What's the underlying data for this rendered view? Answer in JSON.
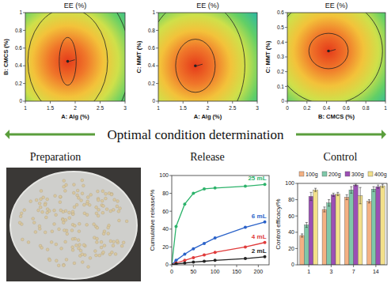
{
  "header": {
    "banner": "Optimal condition determination",
    "sections": [
      "Preparation",
      "Release",
      "Control"
    ]
  },
  "chart_data": [
    {
      "type": "contour",
      "title": "EE (%)",
      "x_label": "A: Alg (%)",
      "y_label": "B: CMCS (%)",
      "xlim": [
        1,
        3
      ],
      "ylim": [
        0,
        1
      ],
      "xticks": [
        1,
        1.5,
        2,
        2.5,
        3
      ],
      "yticks": [
        0,
        0.2,
        0.4,
        0.6,
        0.8,
        1
      ],
      "optimum": [
        1.85,
        0.45
      ],
      "contours": [
        {
          "center": [
            1.85,
            0.45
          ],
          "radius": [
            0.17,
            0.27
          ]
        },
        {
          "center": [
            1.85,
            0.45
          ],
          "radius": [
            0.8,
            0.6
          ]
        },
        {
          "center": [
            1.85,
            0.45
          ],
          "radius": [
            1.25,
            0.9
          ]
        }
      ]
    },
    {
      "type": "contour",
      "title": "EE (%)",
      "x_label": "A: Alg (%)",
      "y_label": "C: MMT (%)",
      "xlim": [
        1,
        3
      ],
      "ylim": [
        0,
        1
      ],
      "xticks": [
        1,
        1.5,
        2,
        2.5,
        3
      ],
      "yticks": [
        0,
        0.2,
        0.4,
        0.6,
        0.8,
        1
      ],
      "optimum": [
        1.75,
        0.4
      ],
      "contours": [
        {
          "center": [
            1.75,
            0.4
          ],
          "radius": [
            0.4,
            0.3
          ]
        },
        {
          "center": [
            1.75,
            0.4
          ],
          "radius": [
            1.0,
            0.75
          ]
        }
      ]
    },
    {
      "type": "contour",
      "title": "EE (%)",
      "x_label": "B: CMCS (%)",
      "y_label": "C: MMT (%)",
      "xlim": [
        0,
        1
      ],
      "ylim": [
        0,
        0.6
      ],
      "xticks": [
        0,
        0.2,
        0.4,
        0.6,
        0.8,
        1
      ],
      "yticks": [
        0,
        0.1,
        0.2,
        0.3,
        0.4,
        0.5,
        0.6
      ],
      "optimum": [
        0.42,
        0.34
      ],
      "contours": [
        {
          "center": [
            0.42,
            0.34
          ],
          "radius": [
            0.2,
            0.12
          ]
        },
        {
          "center": [
            0.42,
            0.34
          ],
          "radius": [
            0.55,
            0.36
          ]
        }
      ]
    },
    {
      "type": "line",
      "y_label": "Cumulative release/%",
      "x": [
        0,
        10,
        30,
        50,
        75,
        100,
        170,
        215
      ],
      "xlim": [
        0,
        225
      ],
      "ylim": [
        0,
        100
      ],
      "xticks": [
        0,
        50,
        100,
        150,
        200
      ],
      "yticks": [
        0,
        20,
        40,
        60,
        80,
        100
      ],
      "series": [
        {
          "name": "25 mL",
          "color": "#2db36b",
          "marker": "circle",
          "values": [
            0,
            43,
            68,
            80,
            85,
            86,
            88,
            90
          ]
        },
        {
          "name": "6 mL",
          "color": "#2a62c9",
          "marker": "circle",
          "values": [
            0,
            5,
            12,
            18,
            24,
            30,
            42,
            48
          ]
        },
        {
          "name": "4 mL",
          "color": "#e03a3a",
          "marker": "circle",
          "values": [
            0,
            2,
            5,
            8,
            11,
            14,
            20,
            25
          ]
        },
        {
          "name": "2 mL",
          "color": "#222222",
          "marker": "circle",
          "values": [
            0,
            1,
            2,
            3,
            4,
            5,
            7,
            9
          ]
        }
      ]
    },
    {
      "type": "bar",
      "y_label": "Control efficacy/%",
      "categories": [
        "1",
        "3",
        "7",
        "14"
      ],
      "ylim": [
        0,
        100
      ],
      "yticks": [
        0,
        20,
        40,
        60,
        80,
        100
      ],
      "legend": "top",
      "series": [
        {
          "name": "100g",
          "color": "#f4b183",
          "values": [
            36,
            68,
            83,
            78
          ],
          "errors": [
            2,
            3,
            3,
            2
          ]
        },
        {
          "name": "200g",
          "color": "#7fc8a9",
          "values": [
            49,
            76,
            92,
            93
          ],
          "errors": [
            3,
            4,
            4,
            3
          ]
        },
        {
          "name": "300g",
          "color": "#9b4fb5",
          "values": [
            84,
            86,
            98,
            96
          ],
          "errors": [
            5,
            2,
            1,
            2
          ]
        },
        {
          "name": "400g",
          "color": "#f3e08a",
          "values": [
            92,
            87,
            85,
            97
          ],
          "errors": [
            2,
            2,
            10,
            2
          ]
        }
      ]
    }
  ]
}
